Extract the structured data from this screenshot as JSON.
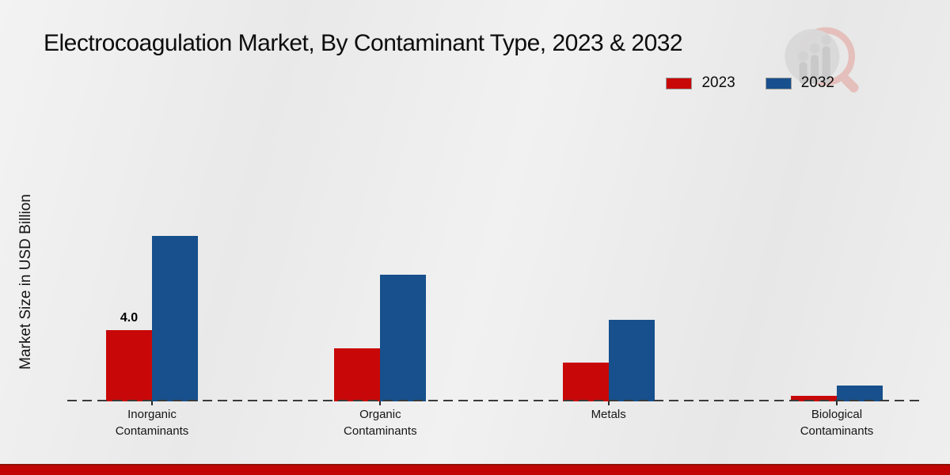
{
  "title": "Electrocoagulation Market, By Contaminant Type, 2023 & 2032",
  "y_axis_label": "Market Size in USD Billion",
  "watermark": "magnifier-bar-chart-logo",
  "footer": {
    "bar_color": "#c10505"
  },
  "chart_data": {
    "type": "bar",
    "title": "Electrocoagulation Market, By Contaminant Type, 2023 & 2032",
    "xlabel": "",
    "ylabel": "Market Size in USD Billion",
    "categories": [
      "Inorganic Contaminants",
      "Organic Contaminants",
      "Metals",
      "Biological Contaminants"
    ],
    "series": [
      {
        "name": "2023",
        "color": "#c80808",
        "values": [
          4.0,
          3.0,
          2.2,
          0.3
        ],
        "bar_labels": [
          "4.0",
          "",
          "",
          ""
        ]
      },
      {
        "name": "2032",
        "color": "#17508c",
        "values": [
          9.3,
          7.1,
          4.6,
          0.9
        ],
        "bar_labels": [
          "",
          "",
          "",
          ""
        ]
      }
    ],
    "ylim": [
      0,
      10
    ],
    "grid": false,
    "axis_style": "dashed-baseline",
    "legend_position": "top-right"
  }
}
